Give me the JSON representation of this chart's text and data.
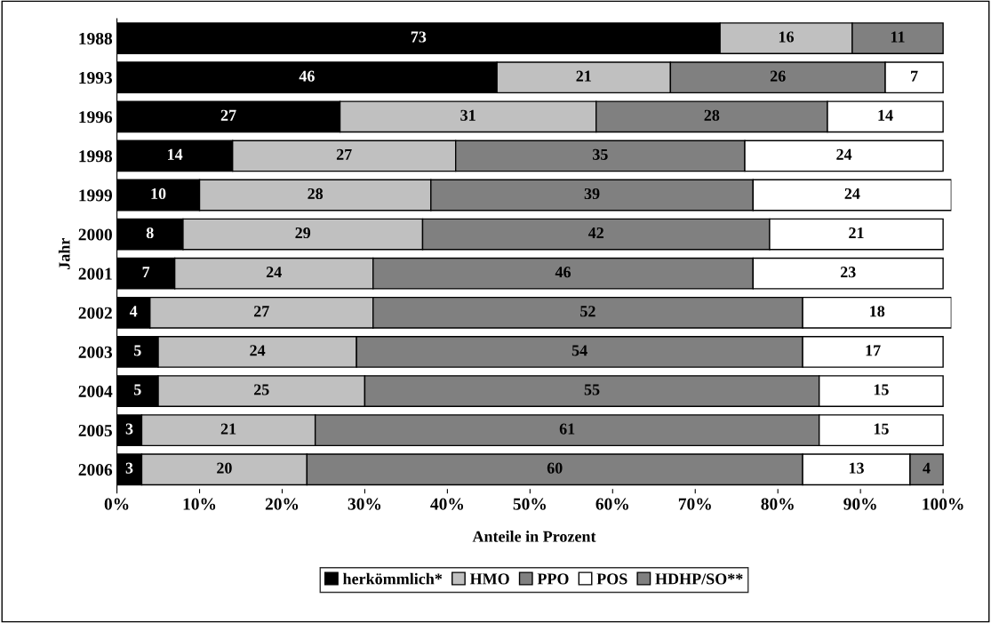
{
  "chart_data": {
    "type": "bar",
    "orientation": "horizontal",
    "stacked": true,
    "data_labels": true,
    "grid": false,
    "legend": "bottom",
    "xlabel": "Anteile in Prozent",
    "ylabel": "Jahr",
    "categories": [
      "1988",
      "1993",
      "1996",
      "1998",
      "1999",
      "2000",
      "2001",
      "2002",
      "2003",
      "2004",
      "2005",
      "2006"
    ],
    "xlim": [
      0,
      101
    ],
    "xticks": [
      {
        "value": 0,
        "label": "0%"
      },
      {
        "value": 10,
        "label": "10%"
      },
      {
        "value": 20,
        "label": "20%"
      },
      {
        "value": 30,
        "label": "30%"
      },
      {
        "value": 40,
        "label": "40%"
      },
      {
        "value": 50,
        "label": "50%"
      },
      {
        "value": 60,
        "label": "60%"
      },
      {
        "value": 70,
        "label": "70%"
      },
      {
        "value": 80,
        "label": "80%"
      },
      {
        "value": 90,
        "label": "90%"
      },
      {
        "value": 100,
        "label": "100%"
      }
    ],
    "series": [
      {
        "name": "herkömmlich*",
        "color": "#000000",
        "values": [
          73,
          46,
          27,
          14,
          10,
          8,
          7,
          4,
          5,
          5,
          3,
          3
        ]
      },
      {
        "name": "HMO",
        "color": "#c0c0c0",
        "values": [
          16,
          21,
          31,
          27,
          28,
          29,
          24,
          27,
          24,
          25,
          21,
          20
        ]
      },
      {
        "name": "PPO",
        "color": "#808080",
        "values": [
          11,
          26,
          28,
          35,
          39,
          42,
          46,
          52,
          54,
          55,
          61,
          60
        ]
      },
      {
        "name": "POS",
        "color": "#ffffff",
        "values": [
          null,
          7,
          14,
          24,
          24,
          21,
          23,
          18,
          17,
          15,
          15,
          13
        ]
      },
      {
        "name": "HDHP/SO**",
        "color": "#808080",
        "values": [
          null,
          null,
          null,
          null,
          null,
          null,
          null,
          null,
          null,
          null,
          null,
          4
        ]
      }
    ]
  }
}
